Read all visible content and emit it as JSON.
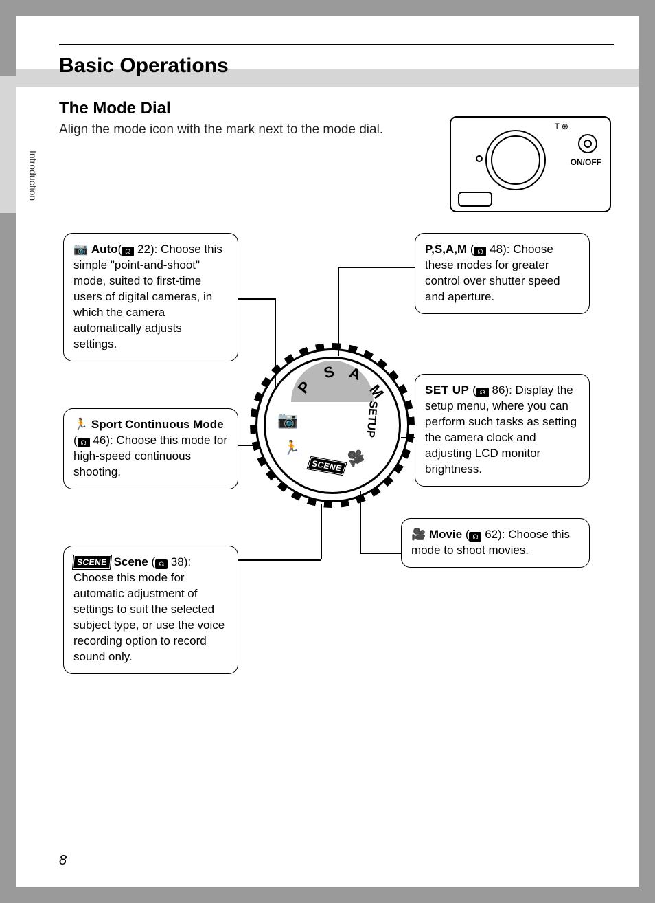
{
  "header": {
    "title": "Basic Operations",
    "subtitle": "The Mode Dial",
    "instruction": "Align the mode icon with the mark next to the mode dial."
  },
  "side_tab": "Introduction",
  "camera_thumb": {
    "onoff": "ON/OFF",
    "zoom": "T ⊕"
  },
  "dial": {
    "P": "P",
    "S": "S",
    "A": "A",
    "M": "M",
    "setup": "SETUP",
    "scene": "SCENE"
  },
  "callouts": {
    "auto": {
      "icon": "📷",
      "label": "Auto",
      "ref": "22",
      "text": "): Choose this simple \"point-and-shoot\" mode, suited to first-time users of digital cameras, in which the camera automatically adjusts settings."
    },
    "sport": {
      "icon": "🏃",
      "label": "Sport Continuous Mode",
      "ref": "46",
      "text": "): Choose this mode for high-speed continuous shooting."
    },
    "scene": {
      "badge": "SCENE",
      "label": "Scene",
      "ref": "38",
      "text": "): Choose this mode for automatic adjustment of settings to suit the selected subject type, or use the voice recording option to record sound only."
    },
    "pasm": {
      "label": "P,S,A,M",
      "ref": "48",
      "text": "): Choose these modes for greater control over shutter speed and aperture."
    },
    "setup": {
      "label": "SET UP",
      "ref": "86",
      "text": "): Display the setup menu, where you can perform such tasks as setting the camera clock and adjusting LCD monitor brightness."
    },
    "movie": {
      "icon": "🎥",
      "label": "Movie",
      "ref": "62",
      "text": "): Choose this mode to shoot movies."
    }
  },
  "page_number": "8",
  "colors": {
    "page_bg": "#ffffff",
    "outer_bg": "#9a9a9a",
    "band": "#d6d6d6",
    "dial_gray": "#b8b8b8",
    "text": "#000000"
  }
}
